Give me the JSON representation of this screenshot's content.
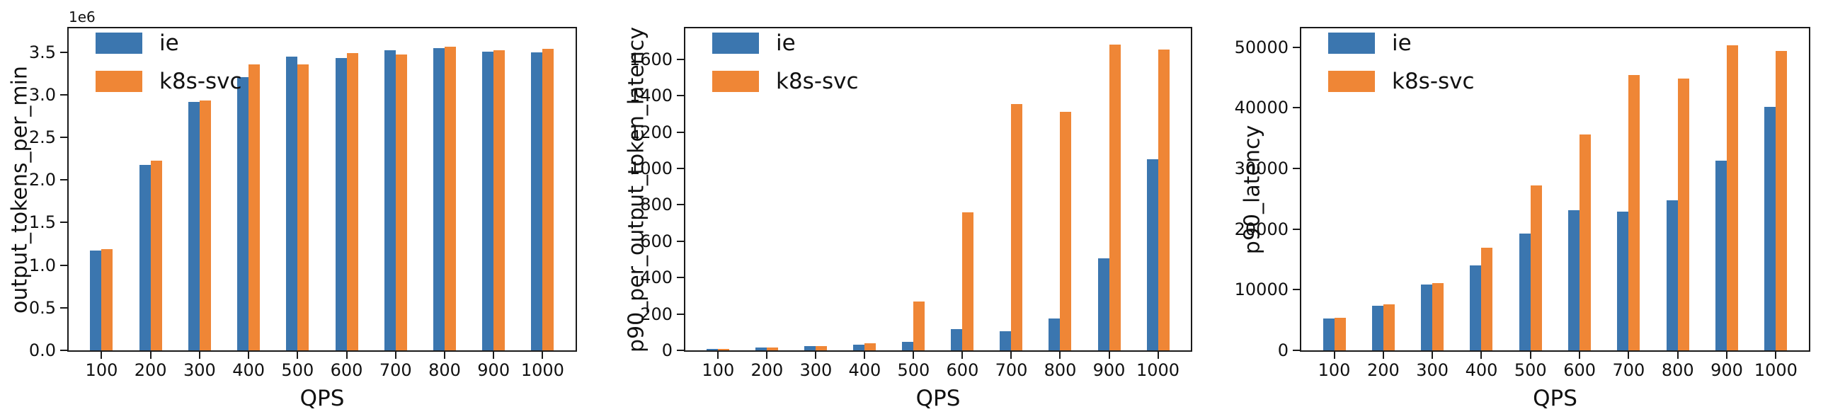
{
  "figure": {
    "background": "#ffffff",
    "text_color": "#111111",
    "spine_color": "#1a1a1a"
  },
  "legend": {
    "position": "upper left",
    "frame": false,
    "items": [
      {
        "label": "ie",
        "color": "#3b76af"
      },
      {
        "label": "k8s-svc",
        "color": "#ef8636"
      }
    ]
  },
  "chart_data": [
    {
      "type": "bar",
      "title": "",
      "xlabel": "QPS",
      "ylabel": "output_tokens_per_min",
      "offset_text": "1e6",
      "grid": false,
      "legend_position": "upper left",
      "categories": [
        100,
        200,
        300,
        400,
        500,
        600,
        700,
        800,
        900,
        1000
      ],
      "xtick_labels": [
        "100",
        "200",
        "300",
        "400",
        "500",
        "600",
        "700",
        "800",
        "900",
        "1000"
      ],
      "ylim": [
        0,
        3780000
      ],
      "ytick_values": [
        0,
        500000,
        1000000,
        1500000,
        2000000,
        2500000,
        3000000,
        3500000
      ],
      "ytick_labels": [
        "0.0",
        "0.5",
        "1.0",
        "1.5",
        "2.0",
        "2.5",
        "3.0",
        "3.5"
      ],
      "series": [
        {
          "name": "ie",
          "color": "#3b76af",
          "values": [
            1170000,
            2180000,
            2920000,
            3210000,
            3450000,
            3430000,
            3520000,
            3550000,
            3510000,
            3500000
          ]
        },
        {
          "name": "k8s-svc",
          "color": "#ef8636",
          "values": [
            1190000,
            2230000,
            2930000,
            3360000,
            3360000,
            3490000,
            3470000,
            3560000,
            3520000,
            3540000
          ]
        }
      ]
    },
    {
      "type": "bar",
      "title": "",
      "xlabel": "QPS",
      "ylabel": "p90_per_output_token_latency",
      "offset_text": "",
      "grid": false,
      "legend_position": "upper left",
      "categories": [
        100,
        200,
        300,
        400,
        500,
        600,
        700,
        800,
        900,
        1000
      ],
      "xtick_labels": [
        "100",
        "200",
        "300",
        "400",
        "500",
        "600",
        "700",
        "800",
        "900",
        "1000"
      ],
      "ylim": [
        0,
        1770
      ],
      "ytick_values": [
        0,
        200,
        400,
        600,
        800,
        1000,
        1200,
        1400,
        1600
      ],
      "ytick_labels": [
        "0",
        "200",
        "400",
        "600",
        "800",
        "1000",
        "1200",
        "1400",
        "1600"
      ],
      "series": [
        {
          "name": "ie",
          "color": "#3b76af",
          "values": [
            8,
            15,
            23,
            33,
            48,
            115,
            105,
            175,
            505,
            1050
          ]
        },
        {
          "name": "k8s-svc",
          "color": "#ef8636",
          "values": [
            9,
            16,
            24,
            38,
            268,
            757,
            1355,
            1310,
            1680,
            1655
          ]
        }
      ]
    },
    {
      "type": "bar",
      "title": "",
      "xlabel": "QPS",
      "ylabel": "p90_latency",
      "offset_text": "",
      "grid": false,
      "legend_position": "upper left",
      "categories": [
        100,
        200,
        300,
        400,
        500,
        600,
        700,
        800,
        900,
        1000
      ],
      "xtick_labels": [
        "100",
        "200",
        "300",
        "400",
        "500",
        "600",
        "700",
        "800",
        "900",
        "1000"
      ],
      "ylim": [
        0,
        53100
      ],
      "ytick_values": [
        0,
        10000,
        20000,
        30000,
        40000,
        50000
      ],
      "ytick_labels": [
        "0",
        "10000",
        "20000",
        "30000",
        "40000",
        "50000"
      ],
      "series": [
        {
          "name": "ie",
          "color": "#3b76af",
          "values": [
            5200,
            7300,
            10900,
            14000,
            19300,
            23100,
            22900,
            24700,
            31300,
            40200
          ]
        },
        {
          "name": "k8s-svc",
          "color": "#ef8636",
          "values": [
            5400,
            7600,
            11100,
            16900,
            27200,
            35600,
            45400,
            44800,
            50300,
            49400
          ]
        }
      ]
    }
  ]
}
